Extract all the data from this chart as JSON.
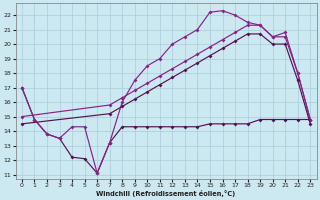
{
  "xlabel": "Windchill (Refroidissement éolien,°C)",
  "xlim": [
    -0.5,
    23.5
  ],
  "ylim": [
    10.7,
    22.8
  ],
  "xticks": [
    0,
    1,
    2,
    3,
    4,
    5,
    6,
    7,
    8,
    9,
    10,
    11,
    12,
    13,
    14,
    15,
    16,
    17,
    18,
    19,
    20,
    21,
    22,
    23
  ],
  "yticks": [
    11,
    12,
    13,
    14,
    15,
    16,
    17,
    18,
    19,
    20,
    21,
    22
  ],
  "bg_color": "#cce8f0",
  "grid_color": "#aaccdd",
  "line_color": "#882288",
  "line_color2": "#551155",
  "series_zigzag_x": [
    0,
    1,
    2,
    3,
    4,
    5,
    6,
    7,
    8,
    9,
    10,
    11,
    12,
    13,
    14,
    15,
    16,
    17,
    18,
    19,
    20,
    21,
    22,
    23
  ],
  "series_zigzag_y": [
    17.0,
    14.8,
    13.8,
    13.5,
    12.2,
    12.1,
    11.1,
    13.2,
    14.3,
    14.3,
    14.3,
    14.3,
    14.3,
    14.3,
    14.3,
    14.5,
    14.5,
    14.5,
    14.5,
    14.8,
    14.8,
    14.8,
    14.8,
    14.8
  ],
  "series_peak_x": [
    0,
    1,
    2,
    3,
    4,
    5,
    6,
    7,
    8,
    9,
    10,
    11,
    12,
    13,
    14,
    15,
    16,
    17,
    18,
    19,
    20,
    21,
    22,
    23
  ],
  "series_peak_y": [
    17.0,
    14.8,
    13.8,
    13.5,
    14.3,
    14.3,
    11.1,
    13.2,
    16.0,
    17.5,
    18.5,
    19.0,
    20.0,
    20.5,
    21.0,
    22.2,
    22.3,
    22.0,
    21.5,
    21.3,
    20.5,
    20.8,
    18.0,
    14.8
  ],
  "series_diag1_x": [
    0,
    7,
    8,
    9,
    10,
    11,
    12,
    13,
    14,
    15,
    16,
    17,
    18,
    19,
    20,
    21,
    22,
    23
  ],
  "series_diag1_y": [
    15.0,
    15.8,
    16.3,
    16.8,
    17.3,
    17.8,
    18.3,
    18.8,
    19.3,
    19.8,
    20.3,
    20.8,
    21.3,
    21.3,
    20.5,
    20.5,
    18.0,
    14.8
  ],
  "series_diag2_x": [
    0,
    7,
    8,
    9,
    10,
    11,
    12,
    13,
    14,
    15,
    16,
    17,
    18,
    19,
    20,
    21,
    22,
    23
  ],
  "series_diag2_y": [
    14.5,
    15.2,
    15.7,
    16.2,
    16.7,
    17.2,
    17.7,
    18.2,
    18.7,
    19.2,
    19.7,
    20.2,
    20.7,
    20.7,
    20.0,
    20.0,
    17.5,
    14.5
  ]
}
